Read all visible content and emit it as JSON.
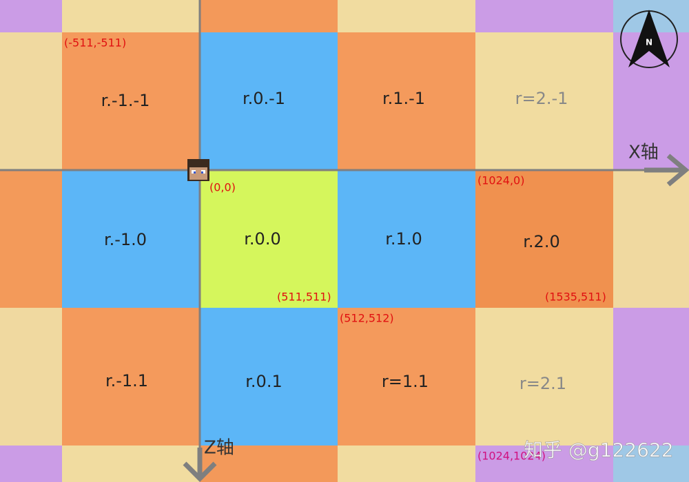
{
  "regions": [
    "r.-1.-1",
    "r.0.-1",
    "r.1.-1",
    "r=2.-1",
    "r.-1.0",
    "r.0.0",
    "r.1.0",
    "r.2.0",
    "r.-1.1",
    "r.0.1",
    "r=1.1",
    "r=2.1"
  ],
  "coordinates": [
    "(-511,-511)",
    "(0,0)",
    "(1024,0)",
    "(511,511)",
    "(1535,511)",
    "(512,512)",
    "(1024,1024)"
  ],
  "axes": {
    "x": "X轴",
    "z": "Z轴"
  },
  "compass": "N",
  "watermark": "知乎 @g122622"
}
